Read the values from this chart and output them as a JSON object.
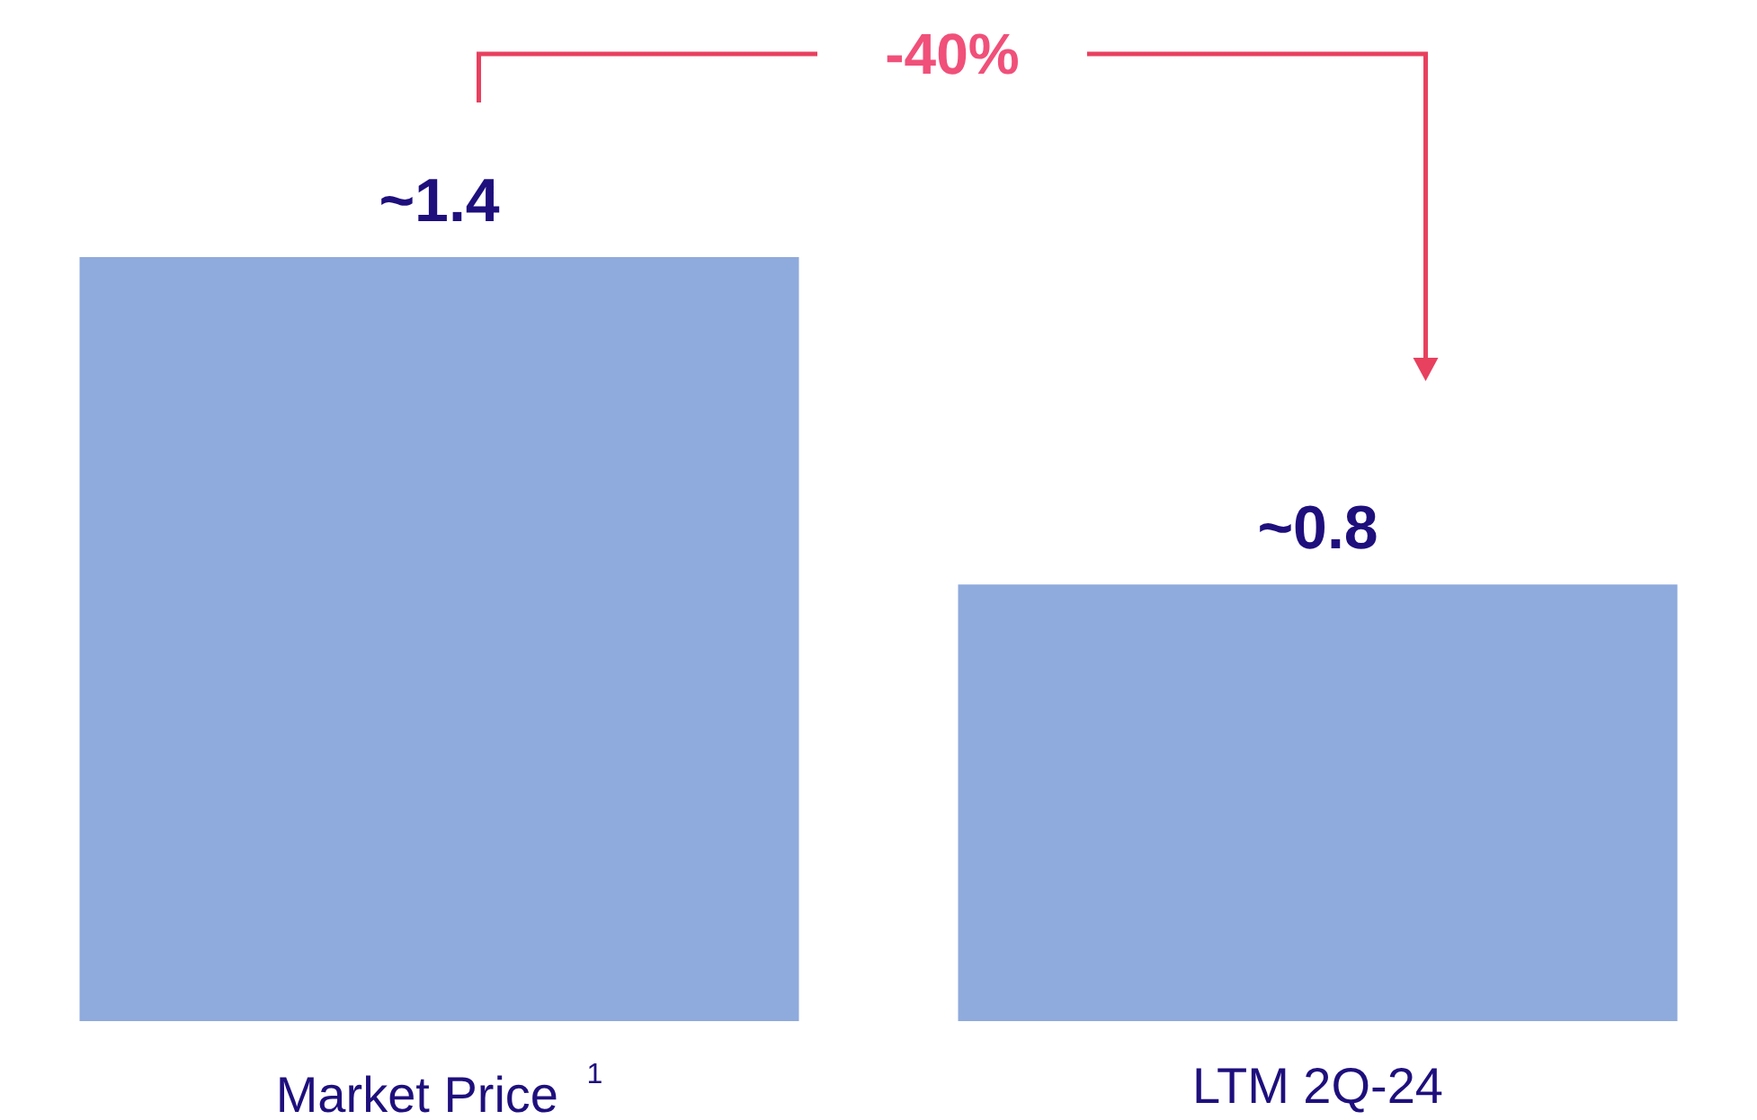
{
  "chart_data": {
    "type": "bar",
    "categories": [
      "Market Price $^{1}$",
      "LTM 2Q-24"
    ],
    "values": [
      1.4,
      0.8
    ],
    "value_labels": [
      "~1.4",
      "~0.8"
    ],
    "color": "#8faadc",
    "annotations": [
      "-40%"
    ]
  }
}
